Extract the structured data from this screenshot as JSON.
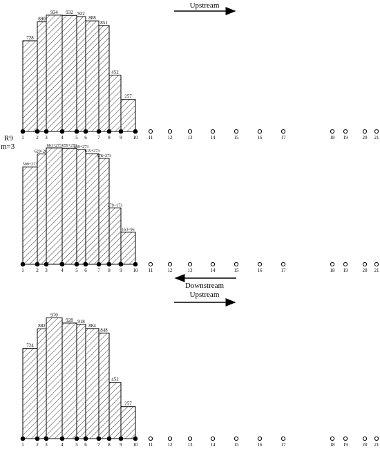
{
  "labels": {
    "upstream_top": "Upstream",
    "downstream_mid": "Downstream",
    "upstream_bottom": "Upstream",
    "route": "R9",
    "m": "m=3"
  },
  "stations": [
    "1",
    "2",
    "3",
    "4",
    "5",
    "6",
    "7",
    "8",
    "9",
    "10",
    "11",
    "12",
    "13",
    "14",
    "15",
    "16",
    "17",
    "18",
    "19",
    "20",
    "21"
  ],
  "chart_data": [
    {
      "type": "bar",
      "direction": "Upstream",
      "categories": [
        "1-2",
        "2-3",
        "3-4",
        "4-5",
        "5-6",
        "6-7",
        "7-8",
        "8-9",
        "9-10"
      ],
      "values": [
        728,
        880,
        934,
        932,
        922,
        888,
        851,
        452,
        257
      ],
      "value_labels": [
        "728",
        "880",
        "934",
        "932",
        "922",
        "888",
        "851",
        "452",
        "257"
      ],
      "ylim": [
        0,
        1000
      ]
    },
    {
      "type": "bar",
      "direction": "Downstream",
      "categories": [
        "1-2",
        "2-3",
        "3-4",
        "4-5",
        "5-6",
        "6-7",
        "7-8",
        "8-9",
        "9-10"
      ],
      "values": [
        782,
        886,
        934,
        932,
        922,
        888,
        851,
        452,
        259
      ],
      "value_labels": [
        "509+273",
        "620+266",
        "661+273",
        "659+273",
        "649+273",
        "615+273",
        "578+273",
        "279+173",
        "163+96"
      ],
      "ylim": [
        0,
        1000
      ]
    },
    {
      "type": "bar",
      "direction": "Upstream",
      "categories": [
        "1-2",
        "2-3",
        "3-4",
        "4-5",
        "5-6",
        "6-7",
        "7-8",
        "8-9",
        "9-10"
      ],
      "values": [
        724,
        882,
        970,
        928,
        918,
        884,
        848,
        452,
        257
      ],
      "value_labels": [
        "724",
        "882",
        "970",
        "928",
        "918",
        "884",
        "848",
        "452",
        "257"
      ],
      "ylim": [
        0,
        1000
      ]
    }
  ]
}
